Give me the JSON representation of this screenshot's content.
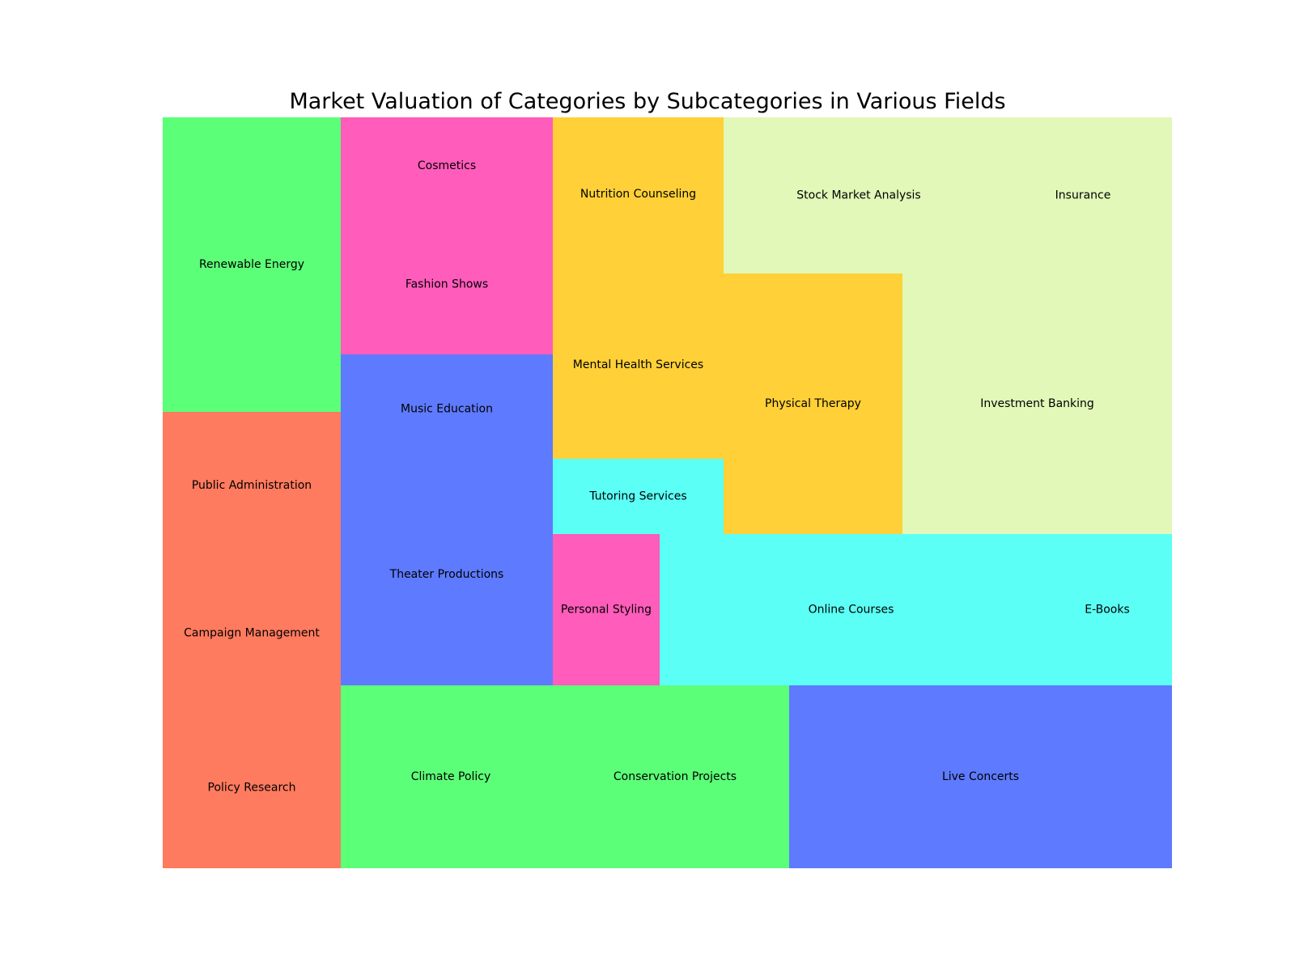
{
  "chart_data": {
    "type": "treemap",
    "title": "Market Valuation of Categories by Subcategories in Various Fields",
    "colors": {
      "green": "#5cff78",
      "orange": "#ff7b5f",
      "pink": "#ff5cbb",
      "blue": "#5e7aff",
      "yellow": "#ffd037",
      "cyan": "#5cfff6",
      "lightgreen": "#e1f8b8"
    },
    "items": [
      {
        "label": "Renewable Energy",
        "value": 13.8,
        "color": "green"
      },
      {
        "label": "Public Administration",
        "value": 8.8,
        "color": "orange"
      },
      {
        "label": "Campaign Management",
        "value": 7.0,
        "color": "orange"
      },
      {
        "label": "Policy Research",
        "value": 5.6,
        "color": "orange"
      },
      {
        "label": "Cosmetics",
        "value": 4.2,
        "color": "pink"
      },
      {
        "label": "Fashion Shows",
        "value": 9.0,
        "color": "pink"
      },
      {
        "label": "Music Education",
        "value": 5.6,
        "color": "blue"
      },
      {
        "label": "Theater Productions",
        "value": 14.7,
        "color": "blue"
      },
      {
        "label": "Nutrition Counseling",
        "value": 5.2,
        "color": "yellow"
      },
      {
        "label": "Mental Health Services",
        "value": 10.3,
        "color": "yellow"
      },
      {
        "label": "Tutoring Services",
        "value": 4.2,
        "color": "cyan"
      },
      {
        "label": "Personal Styling",
        "value": 5.4,
        "color": "pink"
      },
      {
        "label": "Stock Market Analysis",
        "value": 9.2,
        "color": "lightgreen"
      },
      {
        "label": "Insurance",
        "value": 13.9,
        "color": "lightgreen"
      },
      {
        "label": "Physical Therapy",
        "value": 15.4,
        "color": "yellow"
      },
      {
        "label": "Investment Banking",
        "value": 23.2,
        "color": "lightgreen"
      },
      {
        "label": "Online Courses",
        "value": 18.3,
        "color": "cyan"
      },
      {
        "label": "E-Books",
        "value": 10.0,
        "color": "cyan"
      },
      {
        "label": "Climate Policy",
        "value": 11.6,
        "color": "green"
      },
      {
        "label": "Conservation Projects",
        "value": 12.9,
        "color": "green"
      },
      {
        "label": "Live Concerts",
        "value": 23.2,
        "color": "blue"
      }
    ]
  }
}
